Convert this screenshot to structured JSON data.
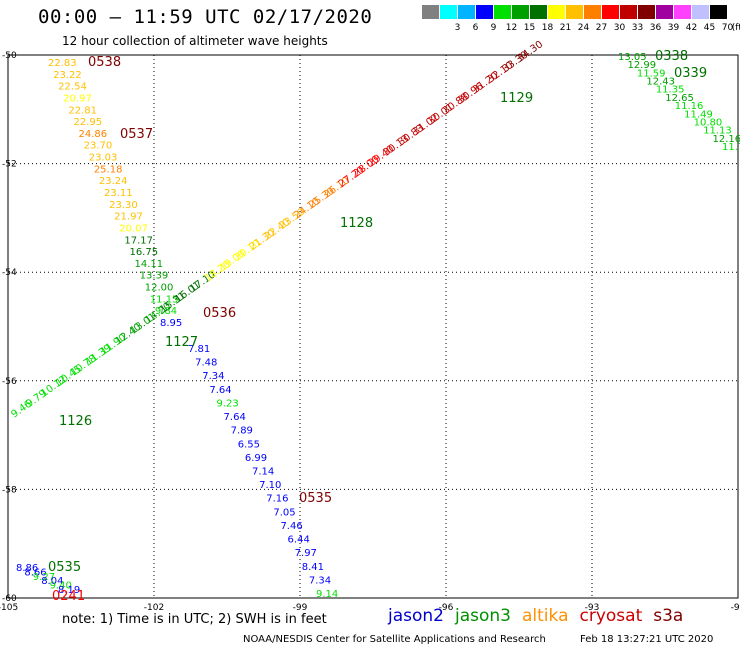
{
  "title": "00:00 – 11:59 UTC 02/17/2020",
  "subtitle": "12 hour collection of altimeter wave heights",
  "legend": {
    "unit": "(ft)",
    "colors": [
      "#808080",
      "#00ffff",
      "#00b4ff",
      "#0000ff",
      "#00e000",
      "#00a000",
      "#007000",
      "#ffff00",
      "#ffc000",
      "#ff8000",
      "#ff0000",
      "#c00000",
      "#800000",
      "#a000a0",
      "#ff40ff",
      "#c0c0ff",
      "#000000"
    ],
    "labels": [
      "",
      "3",
      "6",
      "9",
      "12",
      "15",
      "18",
      "21",
      "24",
      "27",
      "30",
      "33",
      "36",
      "39",
      "42",
      "45",
      "70"
    ]
  },
  "axes": {
    "lon_labels": [
      "-105",
      "-102",
      "-99",
      "-96",
      "-93",
      "-90"
    ],
    "lat_labels": [
      "-50",
      "-52",
      "-54",
      "-56",
      "-58",
      "-60"
    ]
  },
  "tracks": {
    "north_track_values": [
      "22.83",
      "23.22",
      "22.54",
      "20.97",
      "22.81",
      "22.95",
      "24.86",
      "23.70",
      "23.03",
      "25.18",
      "23.24",
      "23.11",
      "23.30",
      "21.97",
      "20.07",
      "17.17",
      "16.75",
      "14.11",
      "13.39",
      "12.00",
      "11.15",
      "9.84",
      "8.95"
    ],
    "south_track_values": [
      "7.81",
      "7.48",
      "7.34",
      "7.64",
      "9.23",
      "7.64",
      "7.89",
      "6.55",
      "6.99",
      "7.14",
      "7.10",
      "7.16",
      "7.05",
      "7.46",
      "6.44",
      "7.97",
      "8.41",
      "7.34",
      "9.14"
    ],
    "diag_values": [
      "9.46",
      "9.79",
      "10.12",
      "10.45",
      "10.78",
      "11.39",
      "11.90",
      "12.40",
      "13.01",
      "14.20",
      "15.31",
      "16.01",
      "17.10",
      "18.20",
      "19.00",
      "20.10",
      "21.30",
      "22.40",
      "23.50",
      "24.10",
      "25.30",
      "26.10",
      "27.20",
      "28.00",
      "29.40",
      "30.13",
      "30.83",
      "31.02",
      "30.01",
      "30.88",
      "30.96",
      "31.20",
      "32.10",
      "33.30",
      "34.30"
    ],
    "ne_values": [
      "13.05",
      "12.99",
      "11.59",
      "12.43",
      "11.35",
      "12.65",
      "11.16",
      "11.49",
      "10.80",
      "11.13",
      "12.16",
      "11.77"
    ],
    "sw_values": [
      "8.86",
      "8.66",
      "9.27",
      "8.04",
      "9.40",
      "8.19"
    ],
    "time_labels": [
      {
        "text": "0538",
        "color": "#800000"
      },
      {
        "text": "0537",
        "color": "#800000"
      },
      {
        "text": "0536",
        "color": "#800000"
      },
      {
        "text": "0535",
        "color": "#800000"
      },
      {
        "text": "1127",
        "color": "#007000"
      },
      {
        "text": "1126",
        "color": "#007000"
      },
      {
        "text": "1128",
        "color": "#007000"
      },
      {
        "text": "1129",
        "color": "#007000"
      },
      {
        "text": "0338",
        "color": "#007000"
      },
      {
        "text": "0339",
        "color": "#007000"
      },
      {
        "text": "0535",
        "color": "#007000"
      },
      {
        "text": "0241",
        "color": "#ff0000"
      }
    ]
  },
  "note": "note: 1) Time is in UTC; 2) SWH is in feet",
  "satellites": [
    {
      "name": "jason2",
      "color": "#0000cc"
    },
    {
      "name": "jason3",
      "color": "#009000"
    },
    {
      "name": "altika",
      "color": "#ff9000"
    },
    {
      "name": "cryosat",
      "color": "#cc0000"
    },
    {
      "name": "s3a",
      "color": "#800000"
    }
  ],
  "credit": "NOAA/NESDIS Center for Satellite Applications and Research",
  "stamp": "Feb 18 13:27:21 UTC 2020"
}
